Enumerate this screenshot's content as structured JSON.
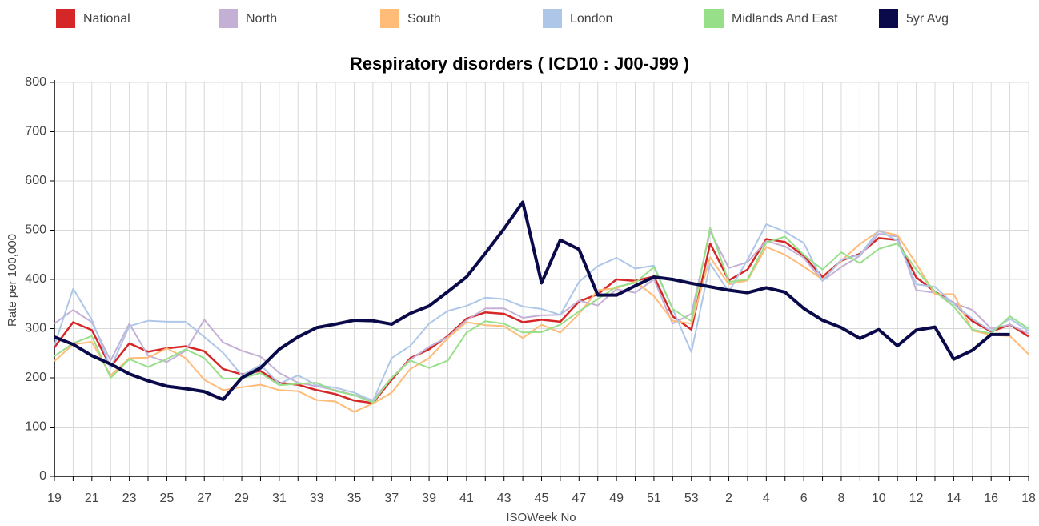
{
  "chart_data": {
    "type": "line",
    "title": "Respiratory disorders ( ICD10 : J00-J99 )",
    "x_label": "ISOWeek No",
    "y_label": "Rate per 100,000",
    "categories": [
      19,
      null,
      21,
      null,
      23,
      null,
      25,
      null,
      27,
      null,
      29,
      null,
      31,
      null,
      33,
      null,
      35,
      null,
      37,
      null,
      39,
      null,
      41,
      null,
      43,
      null,
      45,
      null,
      47,
      null,
      49,
      null,
      51,
      null,
      53,
      null,
      2,
      null,
      4,
      null,
      6,
      null,
      8,
      null,
      10,
      null,
      12,
      null,
      14,
      null,
      16,
      null,
      18
    ],
    "ylim": [
      0,
      800
    ],
    "yticks": [
      0,
      100,
      200,
      300,
      400,
      500,
      600,
      700,
      800
    ],
    "grid": true,
    "legend": "top",
    "series": [
      {
        "name": "National",
        "color": "#d62728",
        "width": 2.5,
        "values": [
          262,
          313,
          297,
          222,
          270,
          253,
          260,
          264,
          254,
          218,
          207,
          214,
          190,
          186,
          175,
          167,
          154,
          149,
          196,
          240,
          258,
          285,
          320,
          333,
          330,
          313,
          318,
          314,
          355,
          370,
          400,
          397,
          406,
          325,
          298,
          473,
          398,
          420,
          482,
          476,
          448,
          405,
          438,
          452,
          484,
          480,
          404,
          375,
          352,
          315,
          294,
          308,
          284
        ]
      },
      {
        "name": "North",
        "color": "#c5b0d5",
        "width": 2,
        "values": [
          310,
          338,
          313,
          235,
          310,
          245,
          232,
          255,
          318,
          272,
          255,
          243,
          210,
          190,
          183,
          175,
          165,
          155,
          200,
          237,
          263,
          283,
          317,
          341,
          341,
          322,
          327,
          328,
          357,
          347,
          380,
          373,
          400,
          310,
          330,
          498,
          423,
          435,
          478,
          467,
          444,
          397,
          425,
          448,
          493,
          487,
          378,
          373,
          352,
          338,
          300,
          308,
          290
        ]
      },
      {
        "name": "South",
        "color": "#ffbb78",
        "width": 2,
        "values": [
          234,
          268,
          273,
          205,
          240,
          241,
          260,
          240,
          196,
          175,
          181,
          186,
          175,
          173,
          155,
          152,
          131,
          148,
          170,
          218,
          240,
          281,
          313,
          307,
          305,
          281,
          308,
          292,
          330,
          378,
          382,
          396,
          366,
          316,
          310,
          445,
          390,
          398,
          466,
          450,
          426,
          400,
          438,
          472,
          498,
          490,
          432,
          370,
          370,
          296,
          287,
          285,
          248
        ]
      },
      {
        "name": "London",
        "color": "#aec7e8",
        "width": 2,
        "values": [
          266,
          381,
          318,
          220,
          305,
          316,
          314,
          314,
          283,
          251,
          205,
          226,
          188,
          205,
          185,
          180,
          170,
          153,
          240,
          265,
          310,
          336,
          346,
          363,
          360,
          345,
          340,
          328,
          395,
          427,
          444,
          422,
          428,
          340,
          252,
          432,
          375,
          440,
          512,
          497,
          474,
          397,
          440,
          450,
          500,
          478,
          390,
          385,
          350,
          320,
          295,
          320,
          295
        ]
      },
      {
        "name": "Midlands And East",
        "color": "#98df8a",
        "width": 2,
        "values": [
          244,
          270,
          285,
          200,
          238,
          222,
          238,
          258,
          240,
          198,
          199,
          210,
          185,
          188,
          190,
          173,
          165,
          150,
          200,
          235,
          220,
          235,
          292,
          315,
          310,
          292,
          293,
          308,
          335,
          360,
          385,
          393,
          425,
          340,
          315,
          505,
          395,
          400,
          475,
          487,
          450,
          420,
          455,
          433,
          462,
          473,
          420,
          375,
          345,
          298,
          290,
          325,
          300
        ]
      },
      {
        "name": "5yr Avg",
        "color": "#0a0a4a",
        "width": 4,
        "values": [
          283,
          268,
          245,
          228,
          208,
          194,
          183,
          178,
          172,
          156,
          200,
          220,
          258,
          283,
          302,
          309,
          317,
          316,
          309,
          331,
          346,
          375,
          405,
          453,
          503,
          557,
          393,
          480,
          461,
          368,
          368,
          387,
          405,
          400,
          392,
          385,
          378,
          373,
          383,
          374,
          341,
          317,
          302,
          280,
          298,
          265,
          297,
          303,
          238,
          256,
          288,
          288,
          null
        ]
      }
    ]
  }
}
